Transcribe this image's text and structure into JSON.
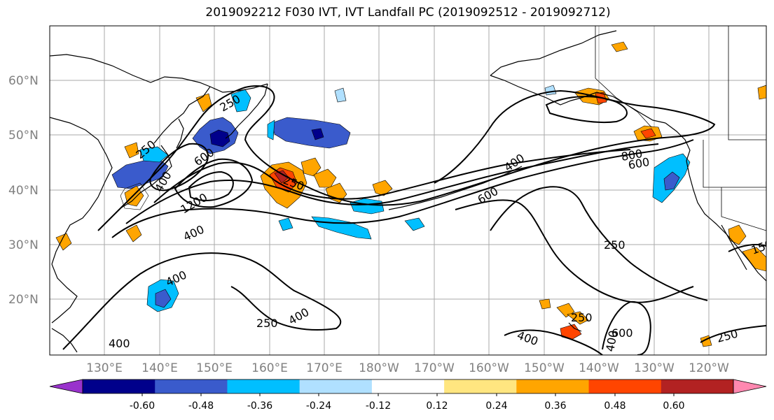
{
  "title": "2019092212 F030 IVT, IVT Landfall PC (2019092512 - 2019092712)",
  "lat_labels": [
    "60°N",
    "50°N",
    "40°N",
    "30°N",
    "20°N"
  ],
  "lon_labels": [
    "130°E",
    "140°E",
    "150°E",
    "160°E",
    "170°E",
    "180°W",
    "170°W",
    "160°W",
    "150°W",
    "140°W",
    "130°W",
    "120°W"
  ],
  "colorbar": {
    "colors": [
      "#9932cc",
      "#00008b",
      "#3a5bcc",
      "#00bfff",
      "#b0e0ff",
      "#ffffff",
      "#ffe680",
      "#ffa500",
      "#ff4500",
      "#b22222",
      "#ff88b0"
    ],
    "tick_labels": [
      "-0.60",
      "-0.48",
      "-0.36",
      "-0.24",
      "-0.12",
      "0.12",
      "0.24",
      "0.36",
      "0.48",
      "0.60"
    ]
  },
  "contour_labels": [
    "250",
    "250",
    "600",
    "1200",
    "400",
    "250",
    "400",
    "400",
    "250",
    "400",
    "400",
    "800",
    "600",
    "600",
    "400",
    "250",
    "250",
    "400",
    "600",
    "400",
    "250",
    "150"
  ],
  "colors": {
    "contour": "#000000",
    "grid": "#999999"
  }
}
